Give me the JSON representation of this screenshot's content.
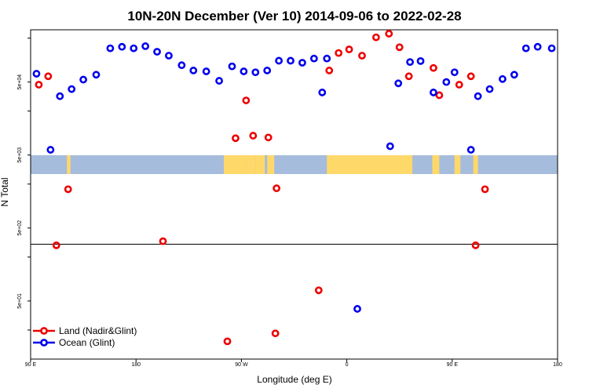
{
  "chart_data": {
    "type": "scatter",
    "title": "10N-20N December (Ver 10)   2014-09-06 to 2022-02-28",
    "xlabel": "Longitude (deg E)",
    "ylabel": "N Total",
    "x_ticks": [
      {
        "value": 90,
        "label": "90 E"
      },
      {
        "value": 180,
        "label": "180"
      },
      {
        "value": 270,
        "label": "90 W"
      },
      {
        "value": 360,
        "label": "0"
      },
      {
        "value": 450,
        "label": "90 E"
      },
      {
        "value": 540,
        "label": "180"
      }
    ],
    "y_ticks": [
      {
        "value": 50000,
        "label": "5e+04"
      },
      {
        "value": 5000,
        "label": "5e+03"
      },
      {
        "value": 500,
        "label": "5e+02"
      },
      {
        "value": 50,
        "label": "5e+01"
      }
    ],
    "y_scale": "log",
    "xlim": [
      90,
      540
    ],
    "ylim": [
      8,
      260000
    ],
    "reference_line": 300,
    "series": [
      {
        "name": "Land (Nadir&Glint)",
        "color": "#ee0000",
        "points": [
          {
            "x": 97,
            "y": 46000
          },
          {
            "x": 105,
            "y": 60000
          },
          {
            "x": 112,
            "y": 290
          },
          {
            "x": 122,
            "y": 1700
          },
          {
            "x": 203,
            "y": 330
          },
          {
            "x": 258,
            "y": 14
          },
          {
            "x": 265,
            "y": 8500
          },
          {
            "x": 274,
            "y": 28000
          },
          {
            "x": 280,
            "y": 9200
          },
          {
            "x": 293,
            "y": 8700
          },
          {
            "x": 300,
            "y": 1750
          },
          {
            "x": 299,
            "y": 18
          },
          {
            "x": 336,
            "y": 70
          },
          {
            "x": 345,
            "y": 72000
          },
          {
            "x": 353,
            "y": 125000
          },
          {
            "x": 362,
            "y": 140000
          },
          {
            "x": 373,
            "y": 115000
          },
          {
            "x": 385,
            "y": 205000
          },
          {
            "x": 396,
            "y": 230000
          },
          {
            "x": 405,
            "y": 150000
          },
          {
            "x": 413,
            "y": 60000
          },
          {
            "x": 434,
            "y": 78000
          },
          {
            "x": 439,
            "y": 33000
          },
          {
            "x": 456,
            "y": 46000
          },
          {
            "x": 466,
            "y": 60000
          },
          {
            "x": 470,
            "y": 290
          },
          {
            "x": 478,
            "y": 1700
          }
        ]
      },
      {
        "name": "Ocean (Glint)",
        "color": "#0000ee",
        "points": [
          {
            "x": 95,
            "y": 65000
          },
          {
            "x": 107,
            "y": 5900
          },
          {
            "x": 115,
            "y": 32000
          },
          {
            "x": 125,
            "y": 40000
          },
          {
            "x": 135,
            "y": 54000
          },
          {
            "x": 146,
            "y": 63000
          },
          {
            "x": 158,
            "y": 145000
          },
          {
            "x": 168,
            "y": 152000
          },
          {
            "x": 178,
            "y": 145000
          },
          {
            "x": 188,
            "y": 155000
          },
          {
            "x": 198,
            "y": 130000
          },
          {
            "x": 208,
            "y": 115000
          },
          {
            "x": 219,
            "y": 85000
          },
          {
            "x": 229,
            "y": 72000
          },
          {
            "x": 240,
            "y": 70000
          },
          {
            "x": 251,
            "y": 52000
          },
          {
            "x": 262,
            "y": 82000
          },
          {
            "x": 272,
            "y": 70000
          },
          {
            "x": 282,
            "y": 68000
          },
          {
            "x": 292,
            "y": 72000
          },
          {
            "x": 302,
            "y": 98000
          },
          {
            "x": 312,
            "y": 98000
          },
          {
            "x": 322,
            "y": 92000
          },
          {
            "x": 332,
            "y": 105000
          },
          {
            "x": 343,
            "y": 105000
          },
          {
            "x": 339,
            "y": 36000
          },
          {
            "x": 369,
            "y": 39
          },
          {
            "x": 397,
            "y": 6600
          },
          {
            "x": 404,
            "y": 48000
          },
          {
            "x": 414,
            "y": 94000
          },
          {
            "x": 423,
            "y": 97000
          },
          {
            "x": 434,
            "y": 36000
          },
          {
            "x": 445,
            "y": 50000
          },
          {
            "x": 452,
            "y": 68000
          },
          {
            "x": 466,
            "y": 5900
          },
          {
            "x": 472,
            "y": 32000
          },
          {
            "x": 482,
            "y": 40000
          },
          {
            "x": 493,
            "y": 55000
          },
          {
            "x": 503,
            "y": 63000
          },
          {
            "x": 513,
            "y": 145000
          },
          {
            "x": 523,
            "y": 152000
          },
          {
            "x": 535,
            "y": 145000
          }
        ]
      }
    ],
    "legend": {
      "position": "bottom-left"
    },
    "map_strip": {
      "ocean_color": "#a6bcdc",
      "land_color": "#ffd86a",
      "land": [
        {
          "x0": 121,
          "x1": 124
        },
        {
          "x0": 122,
          "x1": 123
        },
        {
          "x0": 255,
          "x1": 275
        },
        {
          "x0": 275,
          "x1": 282
        },
        {
          "x0": 282,
          "x1": 290
        },
        {
          "x0": 292,
          "x1": 298
        },
        {
          "x0": 343,
          "x1": 416
        },
        {
          "x0": 433,
          "x1": 439
        },
        {
          "x0": 452,
          "x1": 457
        },
        {
          "x0": 468,
          "x1": 472
        }
      ]
    }
  }
}
